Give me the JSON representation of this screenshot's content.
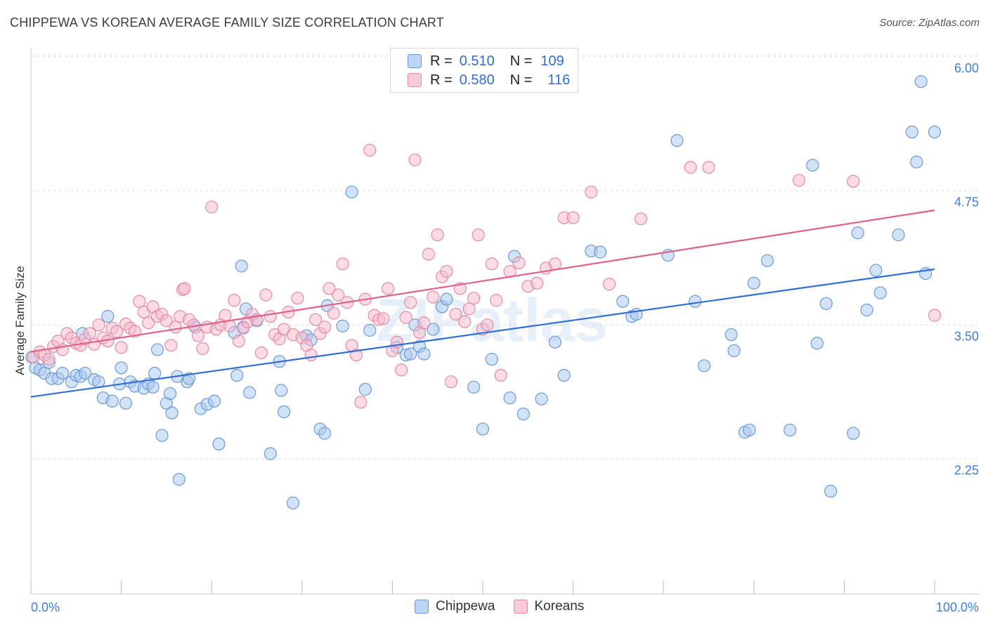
{
  "title": "CHIPPEWA VS KOREAN AVERAGE FAMILY SIZE CORRELATION CHART",
  "source": "Source: ZipAtlas.com",
  "watermark": "ZIPatlas",
  "legend_top": [
    {
      "r_label": "R =",
      "r_value": "0.510",
      "n_label": "N =",
      "n_value": "109"
    },
    {
      "r_label": "R =",
      "r_value": "0.580",
      "n_label": "N =",
      "n_value": "116"
    }
  ],
  "colors": {
    "chippewa_fill": "#a8c8f0",
    "chippewa_stroke": "#6c9ad8",
    "chippewa_line": "#2f6fd6",
    "koreans_fill": "#f7b9cc",
    "koreans_stroke": "#e48aa6",
    "koreans_line": "#e0608c",
    "tick_label": "#3f7fd9",
    "grid": "#dddddd"
  },
  "chart_data": {
    "type": "scatter",
    "title": "CHIPPEWA VS KOREAN AVERAGE FAMILY SIZE CORRELATION CHART",
    "xlabel": "",
    "ylabel": "Average Family Size",
    "xlim": [
      0,
      100
    ],
    "ylim": [
      1.0,
      6.1
    ],
    "x_tick_labels": [
      "0.0%",
      "100.0%"
    ],
    "y_ticks": [
      2.25,
      3.5,
      4.75,
      6.0
    ],
    "y_tick_labels": [
      "2.25",
      "3.50",
      "4.75",
      "6.00"
    ],
    "grid": "horizontal dashed",
    "legend": "bottom-center",
    "series": [
      {
        "name": "Chippewa",
        "trend": {
          "x0": 0,
          "y0": 2.83,
          "x1": 100,
          "y1": 4.02
        },
        "points": [
          [
            0.1,
            3.2
          ],
          [
            0.5,
            3.1
          ],
          [
            1.0,
            3.08
          ],
          [
            1.5,
            3.05
          ],
          [
            2.0,
            3.15
          ],
          [
            2.3,
            3.0
          ],
          [
            3.0,
            3.0
          ],
          [
            3.5,
            3.05
          ],
          [
            4.5,
            2.97
          ],
          [
            5.0,
            3.03
          ],
          [
            5.5,
            3.02
          ],
          [
            5.7,
            3.42
          ],
          [
            6.0,
            3.05
          ],
          [
            7.0,
            2.99
          ],
          [
            7.5,
            2.97
          ],
          [
            8.0,
            2.82
          ],
          [
            8.5,
            3.58
          ],
          [
            9.0,
            2.79
          ],
          [
            9.8,
            2.95
          ],
          [
            10.0,
            3.1
          ],
          [
            10.5,
            2.77
          ],
          [
            11.0,
            2.97
          ],
          [
            11.5,
            2.93
          ],
          [
            12.5,
            2.91
          ],
          [
            13.0,
            2.95
          ],
          [
            13.5,
            2.92
          ],
          [
            13.7,
            3.05
          ],
          [
            14.0,
            3.27
          ],
          [
            14.5,
            2.47
          ],
          [
            15.0,
            2.77
          ],
          [
            15.4,
            2.86
          ],
          [
            15.6,
            2.68
          ],
          [
            16.2,
            3.02
          ],
          [
            16.4,
            2.06
          ],
          [
            17.3,
            2.97
          ],
          [
            17.5,
            3.0
          ],
          [
            18.2,
            3.48
          ],
          [
            18.8,
            2.72
          ],
          [
            19.5,
            2.76
          ],
          [
            20.3,
            2.79
          ],
          [
            20.8,
            2.39
          ],
          [
            22.5,
            3.43
          ],
          [
            22.8,
            3.03
          ],
          [
            23.3,
            4.05
          ],
          [
            23.5,
            3.48
          ],
          [
            23.8,
            3.65
          ],
          [
            24.2,
            2.87
          ],
          [
            25.0,
            3.54
          ],
          [
            26.5,
            2.3
          ],
          [
            27.5,
            3.16
          ],
          [
            27.7,
            2.89
          ],
          [
            28.0,
            2.69
          ],
          [
            29.0,
            1.84
          ],
          [
            30.5,
            3.4
          ],
          [
            31.0,
            3.36
          ],
          [
            32.0,
            2.53
          ],
          [
            32.5,
            2.49
          ],
          [
            32.8,
            3.68
          ],
          [
            34.5,
            3.49
          ],
          [
            35.5,
            4.74
          ],
          [
            37.0,
            2.9
          ],
          [
            37.5,
            3.45
          ],
          [
            40.5,
            3.29
          ],
          [
            41.5,
            3.22
          ],
          [
            42.0,
            3.23
          ],
          [
            42.5,
            3.5
          ],
          [
            43.0,
            3.3
          ],
          [
            43.5,
            3.23
          ],
          [
            44.5,
            3.46
          ],
          [
            45.5,
            3.67
          ],
          [
            46.0,
            3.74
          ],
          [
            49.0,
            2.92
          ],
          [
            50.0,
            2.53
          ],
          [
            51.0,
            3.18
          ],
          [
            53.0,
            2.82
          ],
          [
            53.5,
            4.14
          ],
          [
            54.5,
            2.67
          ],
          [
            56.5,
            2.81
          ],
          [
            58.0,
            3.34
          ],
          [
            59.0,
            3.03
          ],
          [
            62.0,
            4.19
          ],
          [
            63.0,
            4.18
          ],
          [
            65.5,
            3.72
          ],
          [
            66.5,
            3.58
          ],
          [
            67.0,
            3.6
          ],
          [
            70.5,
            4.15
          ],
          [
            71.5,
            5.22
          ],
          [
            73.5,
            3.72
          ],
          [
            74.5,
            3.12
          ],
          [
            77.5,
            3.41
          ],
          [
            77.8,
            3.26
          ],
          [
            79.0,
            2.5
          ],
          [
            79.5,
            2.52
          ],
          [
            80.0,
            3.89
          ],
          [
            81.5,
            4.1
          ],
          [
            84.0,
            2.52
          ],
          [
            86.5,
            4.99
          ],
          [
            87.0,
            3.33
          ],
          [
            88.0,
            3.7
          ],
          [
            88.5,
            1.95
          ],
          [
            91.0,
            2.49
          ],
          [
            91.5,
            4.36
          ],
          [
            92.5,
            3.64
          ],
          [
            93.5,
            4.01
          ],
          [
            94.0,
            3.8
          ],
          [
            96.0,
            4.34
          ],
          [
            98.0,
            5.02
          ],
          [
            99.0,
            3.98
          ],
          [
            100.0,
            5.3
          ],
          [
            97.5,
            5.3
          ],
          [
            98.5,
            5.77
          ]
        ]
      },
      {
        "name": "Koreans",
        "trend": {
          "x0": 0,
          "y0": 3.25,
          "x1": 100,
          "y1": 4.57
        },
        "points": [
          [
            0.3,
            3.2
          ],
          [
            1.0,
            3.25
          ],
          [
            1.5,
            3.22
          ],
          [
            2.0,
            3.18
          ],
          [
            2.5,
            3.3
          ],
          [
            3.0,
            3.35
          ],
          [
            3.5,
            3.27
          ],
          [
            4.0,
            3.42
          ],
          [
            4.5,
            3.38
          ],
          [
            5.0,
            3.33
          ],
          [
            5.5,
            3.31
          ],
          [
            6.0,
            3.37
          ],
          [
            6.5,
            3.42
          ],
          [
            7.0,
            3.32
          ],
          [
            7.5,
            3.5
          ],
          [
            8.0,
            3.38
          ],
          [
            8.5,
            3.35
          ],
          [
            9.0,
            3.47
          ],
          [
            9.5,
            3.44
          ],
          [
            10.0,
            3.29
          ],
          [
            10.5,
            3.51
          ],
          [
            11.0,
            3.47
          ],
          [
            11.5,
            3.44
          ],
          [
            12.0,
            3.72
          ],
          [
            12.5,
            3.62
          ],
          [
            13.0,
            3.52
          ],
          [
            13.5,
            3.67
          ],
          [
            14.0,
            3.58
          ],
          [
            14.5,
            3.6
          ],
          [
            15.0,
            3.54
          ],
          [
            15.5,
            3.31
          ],
          [
            16.0,
            3.48
          ],
          [
            16.5,
            3.58
          ],
          [
            16.8,
            3.83
          ],
          [
            17.0,
            3.84
          ],
          [
            17.5,
            3.55
          ],
          [
            18.0,
            3.5
          ],
          [
            18.5,
            3.4
          ],
          [
            19.0,
            3.28
          ],
          [
            19.5,
            3.48
          ],
          [
            20.0,
            4.6
          ],
          [
            20.5,
            3.46
          ],
          [
            21.0,
            3.5
          ],
          [
            21.5,
            3.59
          ],
          [
            22.0,
            3.49
          ],
          [
            22.5,
            3.73
          ],
          [
            23.0,
            3.35
          ],
          [
            23.5,
            3.47
          ],
          [
            24.0,
            3.53
          ],
          [
            24.5,
            3.6
          ],
          [
            25.0,
            3.55
          ],
          [
            25.5,
            3.24
          ],
          [
            26.0,
            3.78
          ],
          [
            26.5,
            3.58
          ],
          [
            27.0,
            3.41
          ],
          [
            27.5,
            3.37
          ],
          [
            28.0,
            3.46
          ],
          [
            28.5,
            3.62
          ],
          [
            29.0,
            3.41
          ],
          [
            29.5,
            3.75
          ],
          [
            30.0,
            3.38
          ],
          [
            30.5,
            3.31
          ],
          [
            31.0,
            3.22
          ],
          [
            31.5,
            3.55
          ],
          [
            32.0,
            3.42
          ],
          [
            32.5,
            3.48
          ],
          [
            33.0,
            3.84
          ],
          [
            33.5,
            3.61
          ],
          [
            34.0,
            3.78
          ],
          [
            34.5,
            4.07
          ],
          [
            35.0,
            3.71
          ],
          [
            35.5,
            3.31
          ],
          [
            36.0,
            3.22
          ],
          [
            36.5,
            2.78
          ],
          [
            37.0,
            3.74
          ],
          [
            37.5,
            5.13
          ],
          [
            38.0,
            3.59
          ],
          [
            38.5,
            3.55
          ],
          [
            39.0,
            3.56
          ],
          [
            39.5,
            3.84
          ],
          [
            40.0,
            3.26
          ],
          [
            40.5,
            3.34
          ],
          [
            41.0,
            3.08
          ],
          [
            41.5,
            3.57
          ],
          [
            42.0,
            3.71
          ],
          [
            42.5,
            5.04
          ],
          [
            43.0,
            3.43
          ],
          [
            43.5,
            3.52
          ],
          [
            44.0,
            4.16
          ],
          [
            44.5,
            3.76
          ],
          [
            45.0,
            4.34
          ],
          [
            45.5,
            3.95
          ],
          [
            46.0,
            4.0
          ],
          [
            46.5,
            2.97
          ],
          [
            47.0,
            3.6
          ],
          [
            47.5,
            3.84
          ],
          [
            48.0,
            3.53
          ],
          [
            48.5,
            3.65
          ],
          [
            49.0,
            3.75
          ],
          [
            49.5,
            4.34
          ],
          [
            50.0,
            3.46
          ],
          [
            50.5,
            3.5
          ],
          [
            51.0,
            4.07
          ],
          [
            51.5,
            3.73
          ],
          [
            52.0,
            3.03
          ],
          [
            53.0,
            4.0
          ],
          [
            54.0,
            4.08
          ],
          [
            55.0,
            3.86
          ],
          [
            56.0,
            3.89
          ],
          [
            57.0,
            4.03
          ],
          [
            58.0,
            4.07
          ],
          [
            59.0,
            4.5
          ],
          [
            60.0,
            4.5
          ],
          [
            62.0,
            4.74
          ],
          [
            64.0,
            3.88
          ],
          [
            67.5,
            4.49
          ],
          [
            73.0,
            4.97
          ],
          [
            75.0,
            4.97
          ],
          [
            85.0,
            4.85
          ],
          [
            91.0,
            4.84
          ],
          [
            100.0,
            3.59
          ]
        ]
      }
    ]
  },
  "bottom_legend": [
    {
      "label": "Chippewa"
    },
    {
      "label": "Koreans"
    }
  ]
}
